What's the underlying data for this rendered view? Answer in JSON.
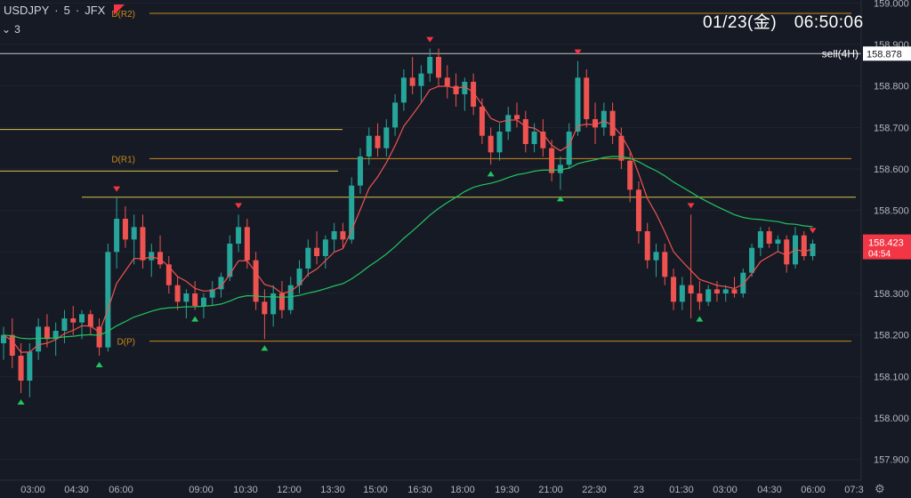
{
  "header": {
    "symbol": "USDJPY",
    "interval": "5",
    "broker": "JFX",
    "separator": "·",
    "indicator_count": "3"
  },
  "clock": "01/23(金)　06:50:06",
  "icons": {
    "flag": "flag-icon",
    "collapse": "chevron-down-icon",
    "settings": "gear-icon"
  },
  "colors": {
    "background": "#161a25",
    "up": "#26a69a",
    "down": "#ef5350",
    "ma_fast": "#ef5350",
    "ma_slow": "#22c55e",
    "pivot_lines": "#c98a1a",
    "sr_lines": "#d4c44a",
    "sell_line": "#c8c8c8"
  },
  "chart_data": {
    "type": "candlestick",
    "symbol": "USDJPY",
    "timeframe": "5",
    "ylim": [
      157.85,
      159.05
    ],
    "y_ticks": [
      "159.000",
      "158.900",
      "158.800",
      "158.700",
      "158.600",
      "158.500",
      "158.400",
      "158.300",
      "158.200",
      "158.100",
      "158.000",
      "157.900"
    ],
    "x_ticks": [
      "03:00",
      "04:30",
      "06:00",
      "09:00",
      "10:30",
      "12:00",
      "13:30",
      "15:00",
      "16:30",
      "18:00",
      "19:30",
      "21:00",
      "22:30",
      "23",
      "01:30",
      "03:00",
      "04:30",
      "06:00",
      "07:3"
    ],
    "current_price": "158.423",
    "countdown": "04:54",
    "levels": [
      {
        "label": "D(R2)",
        "price": 158.975,
        "kind": "pivot"
      },
      {
        "label": "D(R1)",
        "price": 158.625,
        "kind": "pivot"
      },
      {
        "label": "D(P)",
        "price": 158.185,
        "kind": "pivot"
      },
      {
        "label": "",
        "price": 158.695,
        "kind": "sr"
      },
      {
        "label": "",
        "price": 158.595,
        "kind": "sr"
      },
      {
        "label": "",
        "price": 158.532,
        "kind": "sr"
      }
    ],
    "sell_line": {
      "label": "sell(4H)",
      "price": 158.878
    },
    "series": [
      {
        "type": "candles",
        "values": [
          [
            158.18,
            158.22,
            158.14,
            158.2
          ],
          [
            158.2,
            158.24,
            158.12,
            158.15
          ],
          [
            158.15,
            158.18,
            158.06,
            158.09
          ],
          [
            158.09,
            158.18,
            158.05,
            158.16
          ],
          [
            158.16,
            158.24,
            158.14,
            158.22
          ],
          [
            158.22,
            158.25,
            158.17,
            158.19
          ],
          [
            158.19,
            158.23,
            158.15,
            158.21
          ],
          [
            158.21,
            158.26,
            158.18,
            158.24
          ],
          [
            158.24,
            158.27,
            158.2,
            158.23
          ],
          [
            158.23,
            158.26,
            158.19,
            158.25
          ],
          [
            158.25,
            158.26,
            158.2,
            158.22
          ],
          [
            158.22,
            158.24,
            158.15,
            158.17
          ],
          [
            158.17,
            158.42,
            158.16,
            158.4
          ],
          [
            158.4,
            158.53,
            158.36,
            158.48
          ],
          [
            158.48,
            158.51,
            158.41,
            158.43
          ],
          [
            158.43,
            158.49,
            158.37,
            158.46
          ],
          [
            158.46,
            158.49,
            158.36,
            158.38
          ],
          [
            158.38,
            158.42,
            158.34,
            158.4
          ],
          [
            158.4,
            158.44,
            158.36,
            158.37
          ],
          [
            158.37,
            158.39,
            158.3,
            158.32
          ],
          [
            158.32,
            158.34,
            158.26,
            158.28
          ],
          [
            158.28,
            158.31,
            158.24,
            158.3
          ],
          [
            158.3,
            158.33,
            158.26,
            158.27
          ],
          [
            158.27,
            158.3,
            158.24,
            158.29
          ],
          [
            158.29,
            158.33,
            158.27,
            158.31
          ],
          [
            158.31,
            158.35,
            158.29,
            158.34
          ],
          [
            158.34,
            158.44,
            158.33,
            158.42
          ],
          [
            158.42,
            158.49,
            158.4,
            158.46
          ],
          [
            158.46,
            158.48,
            158.36,
            158.38
          ],
          [
            158.38,
            158.4,
            158.26,
            158.28
          ],
          [
            158.28,
            158.31,
            158.19,
            158.25
          ],
          [
            158.25,
            158.32,
            158.22,
            158.3
          ],
          [
            158.3,
            158.33,
            158.24,
            158.26
          ],
          [
            158.26,
            158.34,
            158.25,
            158.32
          ],
          [
            158.32,
            158.38,
            158.3,
            158.36
          ],
          [
            158.36,
            158.43,
            158.34,
            158.41
          ],
          [
            158.41,
            158.45,
            158.37,
            158.39
          ],
          [
            158.39,
            158.44,
            158.36,
            158.43
          ],
          [
            158.43,
            158.47,
            158.4,
            158.45
          ],
          [
            158.45,
            158.47,
            158.41,
            158.43
          ],
          [
            158.43,
            158.58,
            158.42,
            158.56
          ],
          [
            158.56,
            158.65,
            158.54,
            158.63
          ],
          [
            158.63,
            158.7,
            158.61,
            158.68
          ],
          [
            158.68,
            158.71,
            158.63,
            158.65
          ],
          [
            158.65,
            158.72,
            158.63,
            158.7
          ],
          [
            158.7,
            158.78,
            158.68,
            158.76
          ],
          [
            158.76,
            158.84,
            158.74,
            158.82
          ],
          [
            158.82,
            158.87,
            158.78,
            158.8
          ],
          [
            158.8,
            158.85,
            158.76,
            158.83
          ],
          [
            158.83,
            158.89,
            158.81,
            158.87
          ],
          [
            158.87,
            158.89,
            158.8,
            158.82
          ],
          [
            158.82,
            158.85,
            158.77,
            158.8
          ],
          [
            158.8,
            158.83,
            158.75,
            158.78
          ],
          [
            158.78,
            158.82,
            158.74,
            158.81
          ],
          [
            158.81,
            158.83,
            158.73,
            158.75
          ],
          [
            158.75,
            158.77,
            158.66,
            158.68
          ],
          [
            158.68,
            158.7,
            158.61,
            158.64
          ],
          [
            158.64,
            158.71,
            158.62,
            158.69
          ],
          [
            158.69,
            158.75,
            158.67,
            158.73
          ],
          [
            158.73,
            158.76,
            158.7,
            158.72
          ],
          [
            158.72,
            158.74,
            158.64,
            158.66
          ],
          [
            158.66,
            158.71,
            158.64,
            158.69
          ],
          [
            158.69,
            158.72,
            158.63,
            158.65
          ],
          [
            158.65,
            158.67,
            158.57,
            158.59
          ],
          [
            158.59,
            158.63,
            158.55,
            158.61
          ],
          [
            158.61,
            158.71,
            158.6,
            158.69
          ],
          [
            158.69,
            158.86,
            158.68,
            158.82
          ],
          [
            158.82,
            158.84,
            158.7,
            158.72
          ],
          [
            158.72,
            158.76,
            158.66,
            158.7
          ],
          [
            158.7,
            158.76,
            158.68,
            158.74
          ],
          [
            158.74,
            158.76,
            158.66,
            158.68
          ],
          [
            158.68,
            158.7,
            158.6,
            158.62
          ],
          [
            158.62,
            158.64,
            158.52,
            158.55
          ],
          [
            158.55,
            158.57,
            158.42,
            158.45
          ],
          [
            158.45,
            158.47,
            158.36,
            158.38
          ],
          [
            158.38,
            158.42,
            158.34,
            158.4
          ],
          [
            158.4,
            158.42,
            158.32,
            158.34
          ],
          [
            158.34,
            158.36,
            158.26,
            158.28
          ],
          [
            158.28,
            158.34,
            158.26,
            158.32
          ],
          [
            158.32,
            158.49,
            158.24,
            158.3
          ],
          [
            158.3,
            158.33,
            158.26,
            158.28
          ],
          [
            158.28,
            158.32,
            158.27,
            158.31
          ],
          [
            158.31,
            158.33,
            158.28,
            158.3
          ],
          [
            158.3,
            158.32,
            158.28,
            158.31
          ],
          [
            158.31,
            158.34,
            158.29,
            158.3
          ],
          [
            158.3,
            158.36,
            158.29,
            158.35
          ],
          [
            158.35,
            158.42,
            158.34,
            158.41
          ],
          [
            158.41,
            158.46,
            158.39,
            158.45
          ],
          [
            158.45,
            158.46,
            158.41,
            158.42
          ],
          [
            158.42,
            158.44,
            158.4,
            158.43
          ],
          [
            158.43,
            158.44,
            158.35,
            158.37
          ],
          [
            158.37,
            158.46,
            158.36,
            158.44
          ],
          [
            158.44,
            158.45,
            158.38,
            158.39
          ],
          [
            158.39,
            158.43,
            158.38,
            158.42
          ]
        ]
      },
      {
        "name": "",
        "type": "line",
        "color": "ma_fast"
      },
      {
        "name": "",
        "type": "line",
        "color": "ma_slow"
      }
    ],
    "signal_markers": [
      {
        "kind": "sell",
        "bar": 13
      },
      {
        "kind": "sell",
        "bar": 27
      },
      {
        "kind": "sell",
        "bar": 49
      },
      {
        "kind": "sell",
        "bar": 66
      },
      {
        "kind": "sell",
        "bar": 79
      },
      {
        "kind": "sell",
        "bar": 93
      },
      {
        "kind": "buy",
        "bar": 2
      },
      {
        "kind": "buy",
        "bar": 11
      },
      {
        "kind": "buy",
        "bar": 22
      },
      {
        "kind": "buy",
        "bar": 30
      },
      {
        "kind": "buy",
        "bar": 56
      },
      {
        "kind": "buy",
        "bar": 64
      },
      {
        "kind": "buy",
        "bar": 80
      }
    ]
  }
}
